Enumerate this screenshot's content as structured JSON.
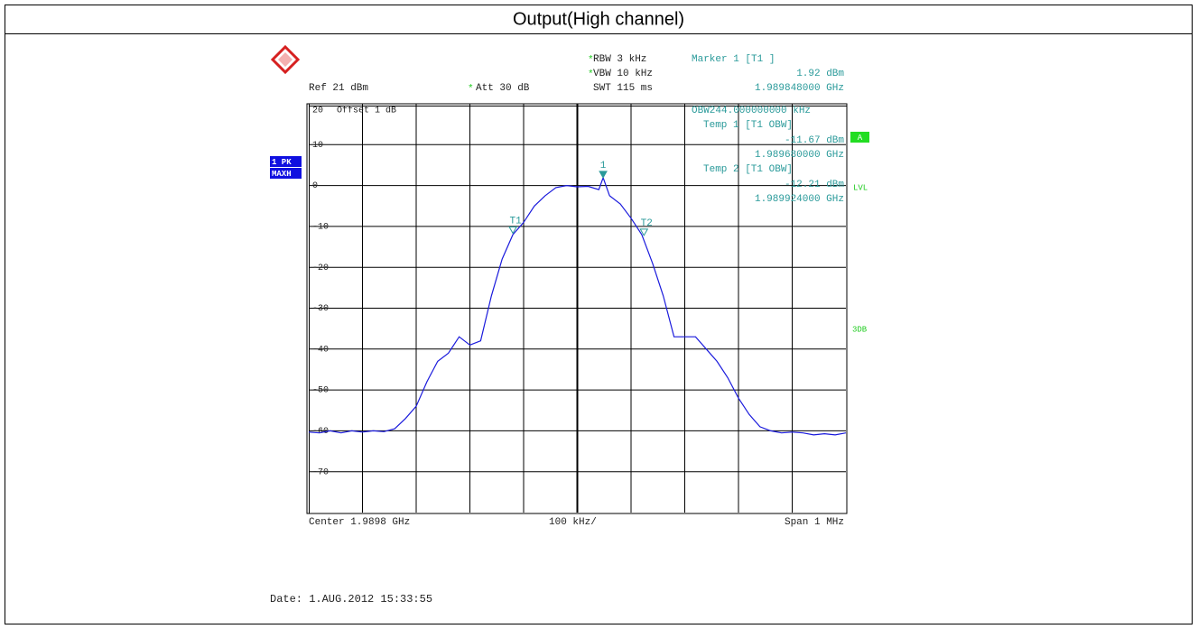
{
  "chart_data": {
    "type": "line",
    "title": "Output(High channel)",
    "color": "#1a1adc",
    "xlim": [
      1.9893,
      1.9903
    ],
    "ylim": [
      -80,
      20
    ],
    "yticks": [
      20,
      10,
      0,
      -10,
      -20,
      -30,
      -40,
      -50,
      -60,
      -70
    ],
    "grid": true,
    "x": [
      1.9893,
      1.98932,
      1.98934,
      1.98936,
      1.98938,
      1.9894,
      1.98942,
      1.98944,
      1.98946,
      1.98948,
      1.9895,
      1.98952,
      1.98954,
      1.98956,
      1.98958,
      1.9896,
      1.98962,
      1.98964,
      1.98966,
      1.98968,
      1.9897,
      1.98972,
      1.98974,
      1.98976,
      1.98978,
      1.9898,
      1.98982,
      1.98984,
      1.989848,
      1.98986,
      1.98988,
      1.9899,
      1.98992,
      1.98994,
      1.98996,
      1.98998,
      1.99,
      1.99002,
      1.99004,
      1.99006,
      1.99008,
      1.9901,
      1.99012,
      1.99014,
      1.99016,
      1.99018,
      1.9902,
      1.99022,
      1.99024,
      1.99026,
      1.99028,
      1.9903
    ],
    "values": [
      -60.3,
      -60.5,
      -60,
      -60.5,
      -60,
      -60.3,
      -60,
      -60.2,
      -59.5,
      -57,
      -54,
      -48,
      -43,
      -41,
      -37,
      -39,
      -38,
      -27,
      -18,
      -12,
      -9,
      -5,
      -2.5,
      -0.5,
      0,
      -0.3,
      -0.2,
      -1,
      1.92,
      -2.5,
      -4.5,
      -8,
      -12,
      -19,
      -27,
      -37,
      -37,
      -37,
      -40,
      -43,
      -47,
      -52,
      -56,
      -59,
      -60,
      -60.5,
      -60.3,
      -60.5,
      -61,
      -60.7,
      -61,
      -60.5
    ],
    "markers": [
      {
        "label": "1",
        "x": 1.989848,
        "y": 1.92
      },
      {
        "label": "T1",
        "x": 1.98968,
        "y": -11.67
      },
      {
        "label": "T2",
        "x": 1.989924,
        "y": -12.21
      }
    ],
    "header": {
      "flag": "*",
      "rbw": "RBW 3 kHz",
      "vbw": "VBW 10 kHz",
      "swt": "SWT 115 ms",
      "ref": "Ref 21 dBm",
      "att": "Att 30 dB"
    },
    "marker_readout": [
      "Marker 1 [T1 ]",
      "1.92 dBm",
      "1.989848000 GHz"
    ],
    "obw_readout": [
      "OBW244.000000000 kHz",
      "Temp 1 [T1 OBW]",
      "-11.67 dBm",
      "1.989680000 GHz",
      "Temp 2 [T1 OBW]",
      "-12.21 dBm",
      "1.989924000 GHz"
    ],
    "offset": "Offset 1 dB",
    "trace_labels": [
      "1 PK",
      "MAXH"
    ],
    "side_labels": {
      "a": "A",
      "lvl": "LVL",
      "db3": "3DB"
    },
    "footer": {
      "center": "Center 1.9898 GHz",
      "div": "100 kHz/",
      "span": "Span 1 MHz"
    }
  },
  "date": "Date: 1.AUG.2012  15:33:55"
}
